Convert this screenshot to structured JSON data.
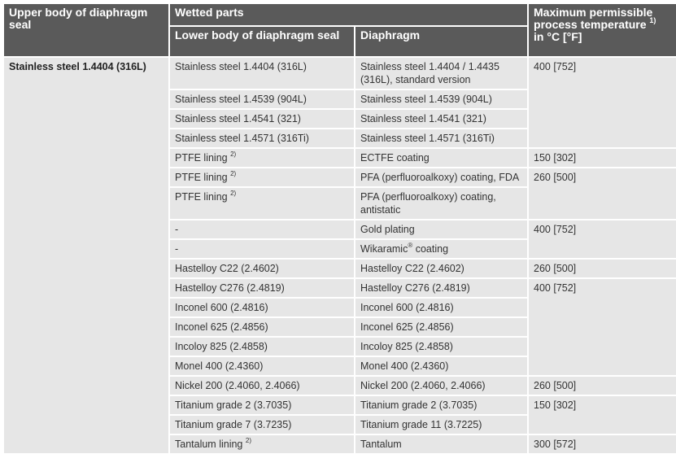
{
  "headers": {
    "upper_body": "Upper body of diaphragm seal",
    "wetted_parts": "Wetted parts",
    "lower_body": "Lower body of diaphragm seal",
    "diaphragm": "Diaphragm",
    "max_temp": "Maximum permissible process temperature",
    "max_temp_note": "1)",
    "max_temp_unit": "in °C [°F]"
  },
  "upper_body_material": "Stainless steel 1.4404 (316L)",
  "rows": [
    {
      "lower": "Stainless steel 1.4404 (316L)",
      "diaphragm": "Stainless steel 1.4404 / 1.4435 (316L), standard version",
      "temp": "400 [752]"
    },
    {
      "lower": "Stainless steel 1.4539 (904L)",
      "diaphragm": "Stainless steel 1.4539 (904L)",
      "temp": ""
    },
    {
      "lower": "Stainless steel 1.4541 (321)",
      "diaphragm": "Stainless steel 1.4541 (321)",
      "temp": ""
    },
    {
      "lower": "Stainless steel 1.4571 (316Ti)",
      "diaphragm": "Stainless steel 1.4571 (316Ti)",
      "temp": ""
    },
    {
      "lower": "PTFE lining",
      "lower_note": "2)",
      "diaphragm": "ECTFE coating",
      "temp": "150 [302]"
    },
    {
      "lower": "PTFE lining",
      "lower_note": "2)",
      "diaphragm": "PFA (perfluoroalkoxy) coating, FDA",
      "temp": "260 [500]"
    },
    {
      "lower": "PTFE lining",
      "lower_note": "2)",
      "diaphragm": "PFA (perfluoroalkoxy) coating, antistatic",
      "temp": ""
    },
    {
      "lower": "-",
      "diaphragm": "Gold plating",
      "temp": "400 [752]"
    },
    {
      "lower": "-",
      "diaphragm": "Wikaramic",
      "diaphragm_mark": "®",
      "diaphragm_suffix": " coating",
      "temp": ""
    },
    {
      "lower": "Hastelloy C22 (2.4602)",
      "diaphragm": "Hastelloy C22 (2.4602)",
      "temp": "260 [500]"
    },
    {
      "lower": "Hastelloy C276 (2.4819)",
      "diaphragm": "Hastelloy C276 (2.4819)",
      "temp": "400 [752]"
    },
    {
      "lower": "Inconel 600 (2.4816)",
      "diaphragm": "Inconel 600 (2.4816)",
      "temp": ""
    },
    {
      "lower": "Inconel 625 (2.4856)",
      "diaphragm": "Inconel 625 (2.4856)",
      "temp": ""
    },
    {
      "lower": "Incoloy 825 (2.4858)",
      "diaphragm": "Incoloy 825 (2.4858)",
      "temp": ""
    },
    {
      "lower": "Monel 400 (2.4360)",
      "diaphragm": "Monel 400 (2.4360)",
      "temp": ""
    },
    {
      "lower": "Nickel 200 (2.4060, 2.4066)",
      "diaphragm": "Nickel 200 (2.4060, 2.4066)",
      "temp": "260 [500]"
    },
    {
      "lower": "Titanium grade 2 (3.7035)",
      "diaphragm": "Titanium grade 2 (3.7035)",
      "temp": "150 [302]"
    },
    {
      "lower": "Titanium grade 7 (3.7235)",
      "diaphragm": "Titanium grade 11 (3.7225)",
      "temp": ""
    },
    {
      "lower": "Tantalum lining",
      "lower_note": "2)",
      "diaphragm": "Tantalum",
      "temp": "300 [572]"
    }
  ]
}
